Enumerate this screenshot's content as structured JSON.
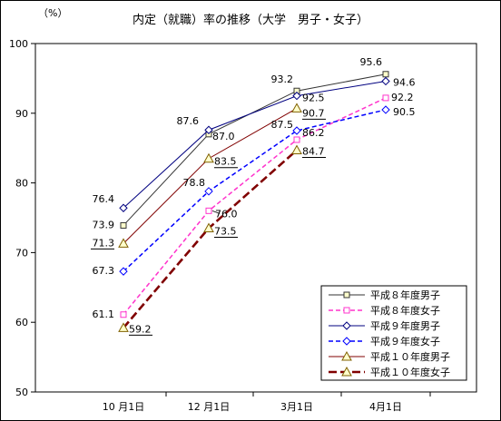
{
  "chart_data": {
    "type": "line",
    "title": "内定（就職）率の推移（大学　男子・女子）",
    "y_unit": "（%）",
    "categories": [
      "10 月1日",
      "12 月1日",
      "3月1日",
      "4月1日"
    ],
    "ylim": [
      50,
      100
    ],
    "yticks": [
      50,
      60,
      70,
      80,
      90,
      100
    ],
    "grid": false,
    "legend_position": "bottom-right",
    "series": [
      {
        "name": "平成８年度男子",
        "values": [
          73.9,
          87.0,
          93.2,
          95.6
        ],
        "color": "#333333",
        "marker": "square",
        "dash": "solid",
        "labels": [
          "73.9",
          "87.0",
          "93.2",
          "95.6"
        ]
      },
      {
        "name": "平成８年度女子",
        "values": [
          61.1,
          76.0,
          86.2,
          92.2
        ],
        "color": "#ff33cc",
        "marker": "square",
        "dash": "dashed",
        "labels": [
          "61.1",
          "76.0",
          "86.2",
          "92.2"
        ]
      },
      {
        "name": "平成９年度男子",
        "values": [
          76.4,
          87.6,
          92.5,
          94.6
        ],
        "color": "#000080",
        "marker": "diamond",
        "dash": "solid",
        "labels": [
          "76.4",
          "87.6",
          "92.5",
          "94.6"
        ]
      },
      {
        "name": "平成９年度女子",
        "values": [
          67.3,
          78.8,
          87.5,
          90.5
        ],
        "color": "#0000ff",
        "marker": "diamond",
        "dash": "dashed",
        "labels": [
          "67.3",
          "78.8",
          "87.5",
          "90.5"
        ]
      },
      {
        "name": "平成１０年度男子",
        "values": [
          71.3,
          83.5,
          90.7,
          null
        ],
        "color": "#800000",
        "marker": "triangle",
        "dash": "solid",
        "labels": [
          "71.3",
          "83.5",
          "90.7",
          null
        ]
      },
      {
        "name": "平成１０年度女子",
        "values": [
          59.2,
          73.5,
          84.7,
          null
        ],
        "color": "#800000",
        "marker": "triangle",
        "dash": "thickdash",
        "labels": [
          "59.2",
          "73.5",
          "84.7",
          null
        ]
      }
    ]
  }
}
